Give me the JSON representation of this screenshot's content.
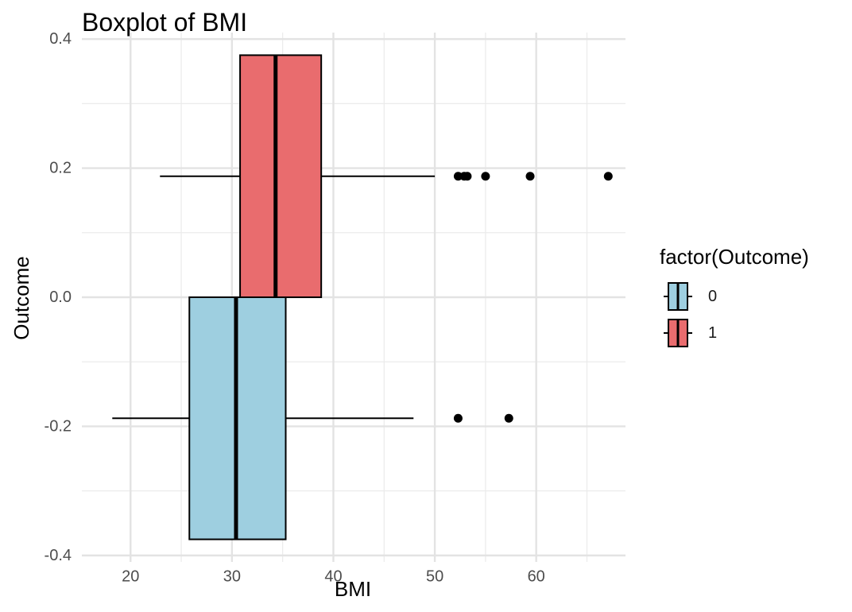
{
  "chart_data": {
    "type": "boxplot",
    "orientation": "horizontal",
    "title": "Boxplot of BMI",
    "xlabel": "BMI",
    "ylabel": "Outcome",
    "xlim": [
      15.2,
      68.8
    ],
    "ylim": [
      -0.41,
      0.41
    ],
    "x_ticks": [
      20,
      30,
      40,
      50,
      60
    ],
    "x_tick_labels": [
      "20",
      "30",
      "40",
      "50",
      "60"
    ],
    "y_ticks": [
      -0.4,
      -0.2,
      0.0,
      0.2,
      0.4
    ],
    "y_tick_labels": [
      "-0.4",
      "-0.2",
      "0.0",
      "0.2",
      "0.4"
    ],
    "grid": true,
    "legend": {
      "title": "factor(Outcome)",
      "position": "right",
      "items": [
        {
          "label": "0",
          "color": "#9ecfe0"
        },
        {
          "label": "1",
          "color": "#e96c6e"
        }
      ]
    },
    "series": [
      {
        "group": "0",
        "color": "#9ecfe0",
        "y_center": -0.1875,
        "y_range": [
          -0.375,
          0.0
        ],
        "whisker_low": 18.2,
        "q1": 25.8,
        "median": 30.4,
        "q3": 35.3,
        "whisker_high": 47.9,
        "outliers": [
          52.3,
          57.3
        ]
      },
      {
        "group": "1",
        "color": "#e96c6e",
        "y_center": 0.1875,
        "y_range": [
          0.0,
          0.375
        ],
        "whisker_low": 22.9,
        "q1": 30.8,
        "median": 34.3,
        "q3": 38.8,
        "whisker_high": 50.0,
        "outliers": [
          52.3,
          52.9,
          53.2,
          55.0,
          59.4,
          67.1
        ]
      }
    ]
  }
}
